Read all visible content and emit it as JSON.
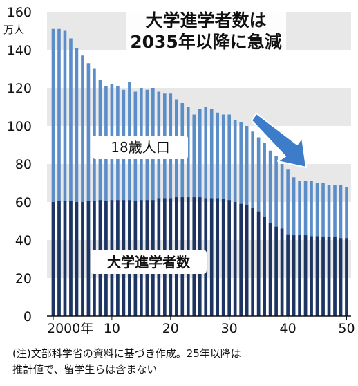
{
  "chart_data": {
    "type": "bar",
    "title": [
      "大学進学者数は",
      "2035年以降に急減"
    ],
    "unit": "万人",
    "x": [
      2000,
      2001,
      2002,
      2003,
      2004,
      2005,
      2006,
      2007,
      2008,
      2009,
      2010,
      2011,
      2012,
      2013,
      2014,
      2015,
      2016,
      2017,
      2018,
      2019,
      2020,
      2021,
      2022,
      2023,
      2024,
      2025,
      2026,
      2027,
      2028,
      2029,
      2030,
      2031,
      2032,
      2033,
      2034,
      2035,
      2036,
      2037,
      2038,
      2039,
      2040,
      2041,
      2042,
      2043,
      2044,
      2045,
      2046,
      2047,
      2048,
      2049,
      2050
    ],
    "x_tick_labels": [
      "2000年",
      "10",
      "20",
      "30",
      "40",
      "50"
    ],
    "x_tick_values": [
      2000,
      2010,
      2020,
      2030,
      2040,
      2050
    ],
    "y_ticks": [
      0,
      20,
      40,
      60,
      80,
      100,
      120,
      140,
      160
    ],
    "ylim": [
      0,
      160
    ],
    "series": [
      {
        "name": "18歳人口",
        "color": "#5b8ec9",
        "values": [
          151,
          151,
          150,
          146,
          141,
          137,
          133,
          130,
          124,
          121,
          122,
          121,
          119,
          123,
          118,
          120,
          119,
          120,
          118,
          117,
          117,
          114,
          112,
          110,
          106,
          109,
          110,
          109,
          107,
          106,
          106,
          103,
          102,
          100,
          97,
          94,
          91,
          87,
          84,
          80,
          77,
          73,
          71,
          71,
          71,
          70,
          70,
          69,
          69,
          69,
          68
        ]
      },
      {
        "name": "大学進学者数",
        "color": "#1f3561",
        "values": [
          60,
          60.5,
          60.5,
          60.5,
          60,
          60,
          60.5,
          60.5,
          61,
          60.5,
          61,
          61,
          61,
          61,
          60.5,
          61,
          61,
          61,
          62,
          62,
          62,
          62.5,
          62.5,
          62.5,
          62.5,
          62.5,
          62,
          62,
          62,
          61.5,
          61,
          60,
          59,
          58.5,
          57,
          55,
          52,
          49,
          47,
          46,
          43,
          42.5,
          42.5,
          42.5,
          42,
          42,
          41.5,
          41.5,
          41.5,
          41,
          41
        ]
      }
    ],
    "grid": "horizontal bands",
    "annotation": "arrow-down"
  },
  "note_lines": [
    "(注)文部科学省の資料に基づき作成。25年以降は",
    "推計値で、留学生らは含まない"
  ],
  "colors": {
    "band": "#e8e8e8",
    "population": "#5b8ec9",
    "enrollment": "#1f3561",
    "arrow": "#3d7cc9"
  }
}
